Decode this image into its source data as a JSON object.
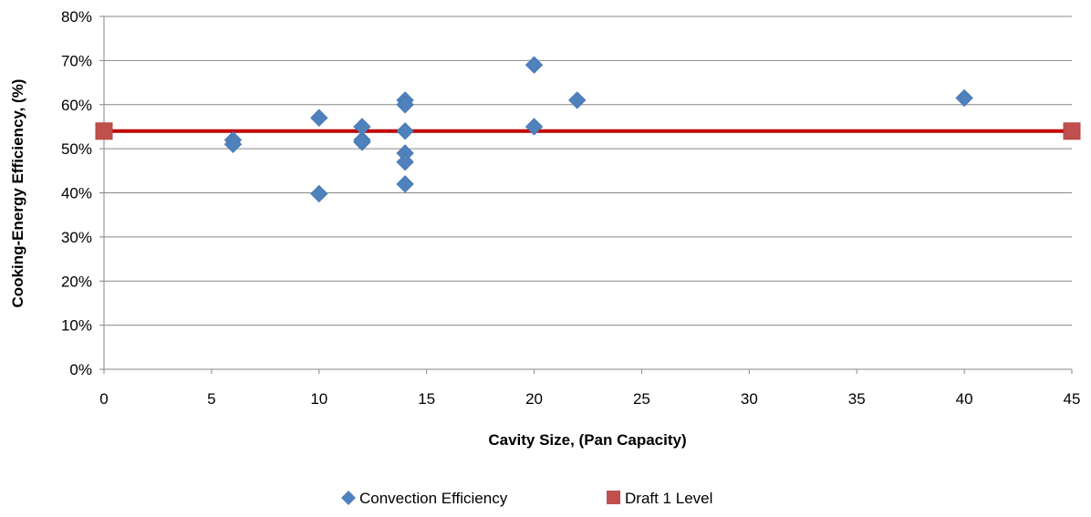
{
  "chart_data": {
    "type": "scatter",
    "title": "",
    "xlabel": "Cavity Size, (Pan Capacity)",
    "ylabel": "Cooking-Energy Efficiency, (%)",
    "xlim": [
      0,
      45
    ],
    "ylim": [
      0,
      80
    ],
    "x_ticks": [
      0,
      5,
      10,
      15,
      20,
      25,
      30,
      35,
      40,
      45
    ],
    "x_tick_labels": [
      "0",
      "5",
      "10",
      "15",
      "20",
      "25",
      "30",
      "35",
      "40",
      "45"
    ],
    "y_ticks": [
      0,
      10,
      20,
      30,
      40,
      50,
      60,
      70,
      80
    ],
    "y_tick_labels": [
      "0%",
      "10%",
      "20%",
      "30%",
      "40%",
      "50%",
      "60%",
      "70%",
      "80%"
    ],
    "grid": "horizontal",
    "legend_position": "bottom",
    "series": [
      {
        "name": "Convection Efficiency",
        "marker": "diamond",
        "color": "#4F81BD",
        "points": [
          {
            "x": 6,
            "y": 52
          },
          {
            "x": 6,
            "y": 51
          },
          {
            "x": 10,
            "y": 57
          },
          {
            "x": 10,
            "y": 39.8
          },
          {
            "x": 12,
            "y": 55
          },
          {
            "x": 12,
            "y": 52
          },
          {
            "x": 12,
            "y": 51.5
          },
          {
            "x": 14,
            "y": 61
          },
          {
            "x": 14,
            "y": 60
          },
          {
            "x": 14,
            "y": 54
          },
          {
            "x": 14,
            "y": 49
          },
          {
            "x": 14,
            "y": 47
          },
          {
            "x": 14,
            "y": 42
          },
          {
            "x": 20,
            "y": 69
          },
          {
            "x": 20,
            "y": 55
          },
          {
            "x": 22,
            "y": 61
          },
          {
            "x": 40,
            "y": 61.5
          }
        ]
      },
      {
        "name": "Draft 1 Level",
        "marker": "square",
        "color": "#C0504D",
        "line_color": "#C00000",
        "points": [
          {
            "x": 0,
            "y": 54
          },
          {
            "x": 45,
            "y": 54
          }
        ]
      }
    ]
  }
}
